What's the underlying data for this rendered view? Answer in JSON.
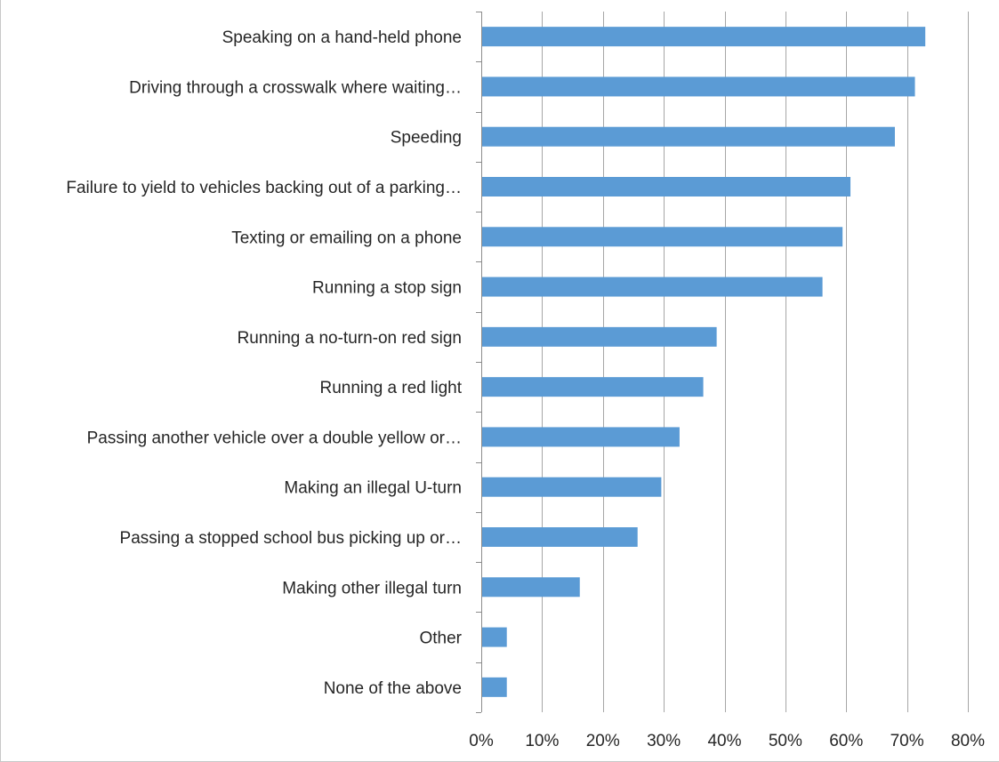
{
  "chart_data": {
    "type": "bar",
    "orientation": "horizontal",
    "title": "",
    "xlabel": "",
    "ylabel": "",
    "categories": [
      "Speaking on a hand-held phone",
      "Driving through a crosswalk where waiting…",
      "Speeding",
      "Failure to yield to vehicles backing out of a parking…",
      "Texting or emailing on a phone",
      "Running a stop sign",
      "Running a no-turn-on red sign",
      "Running a red light",
      "Passing another vehicle over a double yellow or…",
      "Making an illegal U-turn",
      "Passing a stopped school bus picking up or…",
      "Making other illegal turn",
      "Other",
      "None of the above"
    ],
    "values": [
      73,
      71.3,
      68,
      60.7,
      59.4,
      56.1,
      38.7,
      36.5,
      32.6,
      29.6,
      25.7,
      16.2,
      4.2,
      4.2
    ],
    "xlim": [
      0,
      80
    ],
    "xticks": [
      0,
      10,
      20,
      30,
      40,
      50,
      60,
      70,
      80
    ],
    "tick_labels": [
      "0%",
      "10%",
      "20%",
      "30%",
      "40%",
      "50%",
      "60%",
      "70%",
      "80%"
    ],
    "bar_color": "#5b9bd5",
    "grid": true,
    "legend": "none"
  }
}
